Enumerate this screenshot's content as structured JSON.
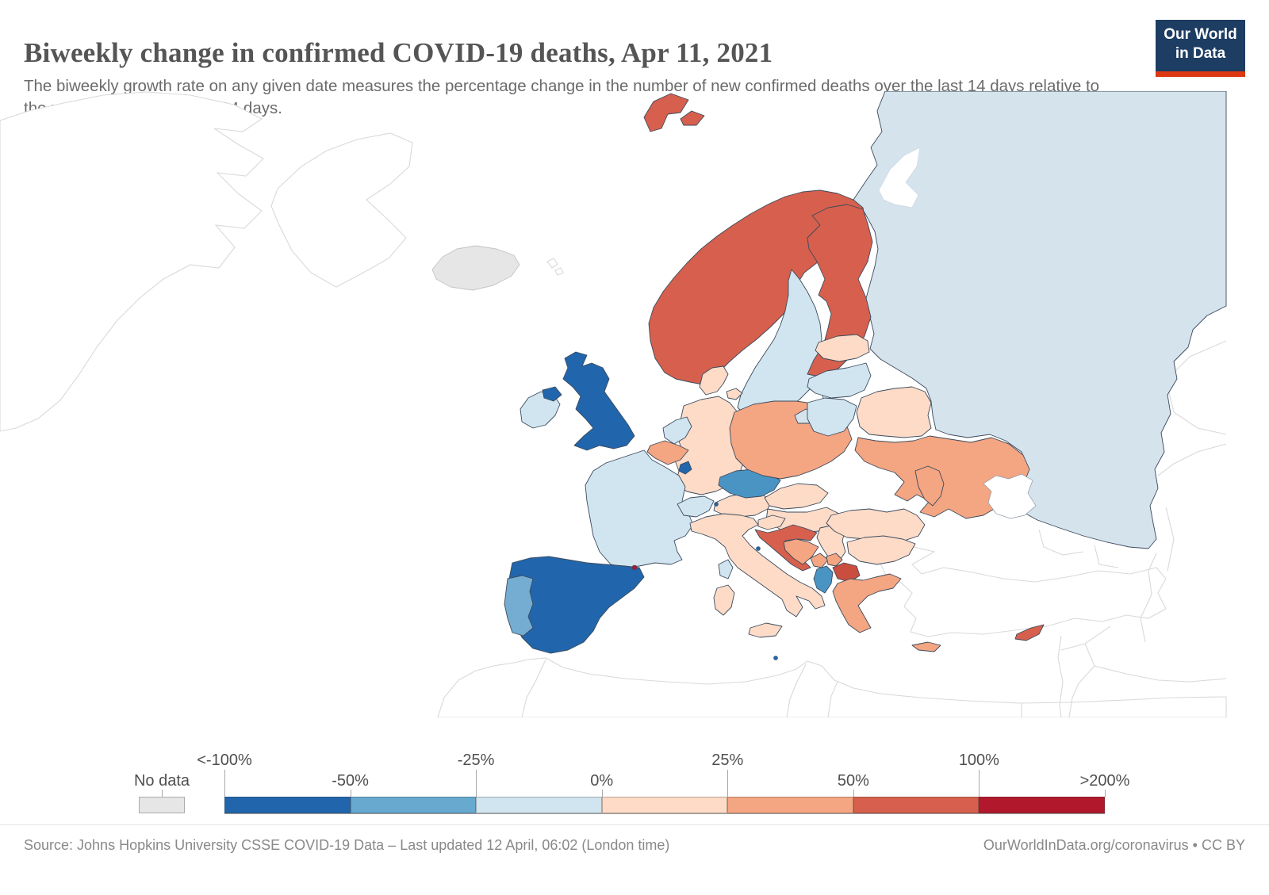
{
  "header": {
    "title": "Biweekly change in confirmed COVID-19 deaths, Apr 11, 2021",
    "subtitle": "The biweekly growth rate on any given date measures the percentage change in the number of new confirmed deaths over the last 14 days relative to the number in the previous 14 days.",
    "logo": {
      "line1": "Our World",
      "line2": "in Data",
      "bg": "#1d3d63",
      "stripe": "#dc3912"
    }
  },
  "legend": {
    "no_data_label": "No data",
    "no_data_color": "#e6e6e6",
    "ticks": [
      "<-100%",
      "-50%",
      "-25%",
      "0%",
      "25%",
      "50%",
      "100%",
      ">200%"
    ],
    "bin_colors": [
      "#2166ac",
      "#67a9cf",
      "#d1e5f0",
      "#fddbc7",
      "#f4a582",
      "#d6604d",
      "#b2182b"
    ]
  },
  "footer": {
    "source": "Source: Johns Hopkins University CSSE COVID-19 Data – Last updated 12 April, 06:02 (London time)",
    "link": "OurWorldInData.org/coronavirus • CC BY"
  },
  "map": {
    "sea_color": "#ffffff",
    "border_color": "#3b4a5c",
    "outline_color": "#d9d9d9",
    "no_data_border": "#c4c4c4",
    "countries": [
      {
        "name": "Russia",
        "color": "#d5e3ed"
      },
      {
        "name": "Iceland",
        "color": "#e6e6e6",
        "no_data": true
      },
      {
        "name": "Svalbard",
        "color": "#d6604d"
      },
      {
        "name": "Norway",
        "color": "#d6604d"
      },
      {
        "name": "Sweden",
        "color": "#d1e5f0"
      },
      {
        "name": "Finland",
        "color": "#d6604d"
      },
      {
        "name": "Germany",
        "color": "#fddbc7"
      },
      {
        "name": "Denmark",
        "color": "#fddbc7"
      },
      {
        "name": "Netherlands",
        "color": "#d1e5f0"
      },
      {
        "name": "Belgium",
        "color": "#f4a582"
      },
      {
        "name": "France",
        "color": "#d1e5f0"
      },
      {
        "name": "Switzerland",
        "color": "#d1e5f0"
      },
      {
        "name": "Austria",
        "color": "#fddbc7"
      },
      {
        "name": "Czechia",
        "color": "#4a94c4"
      },
      {
        "name": "Poland",
        "color": "#f4a582"
      },
      {
        "name": "Kaliningrad (Russia)",
        "color": "#d5e3ed"
      },
      {
        "name": "Estonia",
        "color": "#fddbc7"
      },
      {
        "name": "Latvia",
        "color": "#d1e5f0"
      },
      {
        "name": "Lithuania",
        "color": "#d1e5f0"
      },
      {
        "name": "Belarus",
        "color": "#fddbc7"
      },
      {
        "name": "Ukraine",
        "color": "#f4a582"
      },
      {
        "name": "Moldova",
        "color": "#f4a582"
      },
      {
        "name": "Slovakia",
        "color": "#fddbc7"
      },
      {
        "name": "Hungary",
        "color": "#fddbc7"
      },
      {
        "name": "Slovenia",
        "color": "#fddbc7"
      },
      {
        "name": "Croatia",
        "color": "#d6604d"
      },
      {
        "name": "Bosnia and Herzegovina",
        "color": "#f4a582"
      },
      {
        "name": "Serbia",
        "color": "#fddbc7"
      },
      {
        "name": "Romania",
        "color": "#fddbc7"
      },
      {
        "name": "Bulgaria",
        "color": "#fddbc7"
      },
      {
        "name": "Montenegro",
        "color": "#f4a582"
      },
      {
        "name": "Kosovo",
        "color": "#f4a582"
      },
      {
        "name": "North Macedonia",
        "color": "#c94e40"
      },
      {
        "name": "Albania",
        "color": "#4a94c4"
      },
      {
        "name": "Greece",
        "color": "#f4a582"
      },
      {
        "name": "Italy",
        "color": "#fddbc7"
      },
      {
        "name": "Corsica (France)",
        "color": "#d1e5f0"
      },
      {
        "name": "Ireland",
        "color": "#d1e5f0"
      },
      {
        "name": "United Kingdom",
        "color": "#2166ac"
      },
      {
        "name": "Spain",
        "color": "#2166ac"
      },
      {
        "name": "Portugal",
        "color": "#74add1"
      },
      {
        "name": "Cyprus",
        "color": "#d6604d"
      },
      {
        "name": "Luxembourg",
        "color": "#2166ac"
      },
      {
        "name": "Andorra",
        "color": "#b2182b"
      },
      {
        "name": "Liechtenstein",
        "color": "#2166ac"
      },
      {
        "name": "San Marino",
        "color": "#2166ac"
      },
      {
        "name": "Malta",
        "color": "#2166ac"
      }
    ]
  }
}
